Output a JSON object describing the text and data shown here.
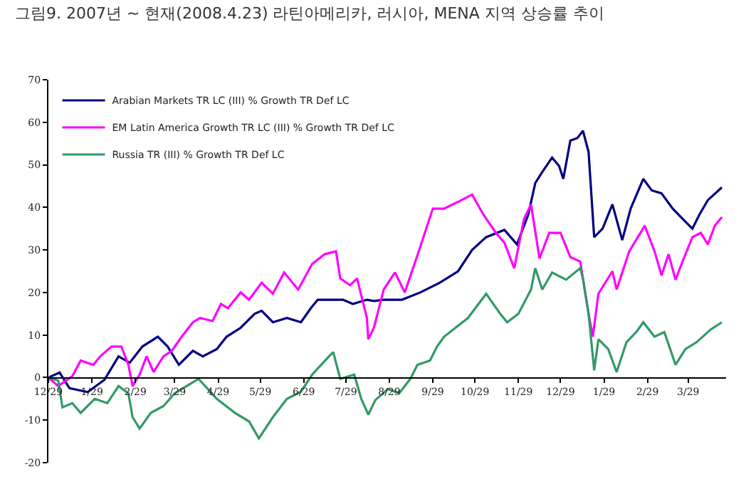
{
  "chart_data": {
    "type": "line",
    "title": "그림9. 2007년 ~ 현재(2008.4.23) 라틴아메리카, 러시아, MENA 지역 상승률 추이",
    "xlim": [
      "2006-12-29",
      "2008-04-25"
    ],
    "xticks": [
      {
        "value": "2006-12-29",
        "label": "12/29"
      },
      {
        "value": "2007-01-29",
        "label": "1/29"
      },
      {
        "value": "2007-03-01",
        "label": "2/29"
      },
      {
        "value": "2007-03-29",
        "label": "3/29"
      },
      {
        "value": "2007-04-29",
        "label": "4/29"
      },
      {
        "value": "2007-05-29",
        "label": "5/29"
      },
      {
        "value": "2007-06-29",
        "label": "6/29"
      },
      {
        "value": "2007-07-29",
        "label": "7/29"
      },
      {
        "value": "2007-08-29",
        "label": "8/29"
      },
      {
        "value": "2007-09-29",
        "label": "9/29"
      },
      {
        "value": "2007-10-29",
        "label": "10/29"
      },
      {
        "value": "2007-11-29",
        "label": "11/29"
      },
      {
        "value": "2007-12-29",
        "label": "12/29"
      },
      {
        "value": "2008-01-29",
        "label": "1/29"
      },
      {
        "value": "2008-02-29",
        "label": "2/29"
      },
      {
        "value": "2008-03-29",
        "label": "3/29"
      }
    ],
    "ylim": [
      -20,
      70
    ],
    "yticks": [
      -20,
      -10,
      0,
      10,
      20,
      30,
      40,
      50,
      60,
      70
    ],
    "legend": "top",
    "marker": "none",
    "line_style": "solid",
    "series": [
      {
        "name": "Arabian Markets TR LC (III) % Growth TR Def LC",
        "color": "#000080",
        "x": [
          "2006-12-29",
          "2007-01-06",
          "2007-01-13",
          "2007-01-26",
          "2007-02-07",
          "2007-02-17",
          "2007-02-25",
          "2007-03-06",
          "2007-03-17",
          "2007-03-24",
          "2007-04-01",
          "2007-04-11",
          "2007-04-18",
          "2007-04-28",
          "2007-05-05",
          "2007-05-15",
          "2007-05-25",
          "2007-05-30",
          "2007-06-07",
          "2007-06-17",
          "2007-06-27",
          "2007-07-04",
          "2007-07-09",
          "2007-07-20",
          "2007-07-27",
          "2007-08-03",
          "2007-08-13",
          "2007-08-18",
          "2007-08-25",
          "2007-09-07",
          "2007-09-20",
          "2007-10-04",
          "2007-10-17",
          "2007-10-27",
          "2007-11-06",
          "2007-11-19",
          "2007-11-28",
          "2007-12-06",
          "2007-12-11",
          "2007-12-16",
          "2007-12-23",
          "2007-12-28",
          "2007-12-31",
          "2008-01-05",
          "2008-01-10",
          "2008-01-14",
          "2008-01-18",
          "2008-01-22",
          "2008-01-28",
          "2008-02-04",
          "2008-02-11",
          "2008-02-17",
          "2008-02-26",
          "2008-03-03",
          "2008-03-10",
          "2008-03-18",
          "2008-03-25",
          "2008-04-01",
          "2008-04-06",
          "2008-04-12",
          "2008-04-22"
        ],
        "values": [
          0,
          1.2,
          -2.5,
          -3.4,
          -0.5,
          5,
          3.5,
          7.3,
          9.6,
          7.3,
          3,
          6.3,
          5,
          6.7,
          9.6,
          11.7,
          15,
          15.7,
          13,
          14,
          13,
          16.3,
          18.3,
          18.3,
          18.3,
          17.3,
          18.3,
          18,
          18.3,
          18.3,
          20,
          22.3,
          25,
          30,
          33,
          34.7,
          31.3,
          38.3,
          45.7,
          48.3,
          51.7,
          49.7,
          46.7,
          55.7,
          56.3,
          58,
          53,
          33,
          35,
          40.7,
          32.3,
          39.7,
          46.7,
          44,
          43.3,
          39.7,
          37.3,
          35,
          38.3,
          41.7,
          44.7
        ]
      },
      {
        "name": "EM Latin America Growth TR LC (III) % Growth TR Def LC",
        "color": "#ff00ff",
        "x": [
          "2006-12-29",
          "2007-01-05",
          "2007-01-15",
          "2007-01-21",
          "2007-01-30",
          "2007-02-04",
          "2007-02-12",
          "2007-02-19",
          "2007-02-24",
          "2007-02-27",
          "2007-03-04",
          "2007-03-09",
          "2007-03-14",
          "2007-03-21",
          "2007-03-27",
          "2007-04-03",
          "2007-04-11",
          "2007-04-16",
          "2007-04-25",
          "2007-05-01",
          "2007-05-06",
          "2007-05-15",
          "2007-05-21",
          "2007-05-30",
          "2007-06-07",
          "2007-06-15",
          "2007-06-25",
          "2007-07-05",
          "2007-07-14",
          "2007-07-22",
          "2007-07-25",
          "2007-08-01",
          "2007-08-06",
          "2007-08-13",
          "2007-08-14",
          "2007-08-18",
          "2007-08-25",
          "2007-09-02",
          "2007-09-09",
          "2007-09-19",
          "2007-09-29",
          "2007-10-07",
          "2007-10-17",
          "2007-10-27",
          "2007-11-04",
          "2007-11-13",
          "2007-11-19",
          "2007-11-26",
          "2007-12-03",
          "2007-12-08",
          "2007-12-14",
          "2007-12-21",
          "2007-12-29",
          "2008-01-05",
          "2008-01-12",
          "2008-01-18",
          "2008-01-21",
          "2008-01-25",
          "2008-02-04",
          "2008-02-07",
          "2008-02-16",
          "2008-02-24",
          "2008-02-27",
          "2008-03-05",
          "2008-03-10",
          "2008-03-15",
          "2008-03-20",
          "2008-03-25",
          "2008-04-01",
          "2008-04-07",
          "2008-04-12",
          "2008-04-17",
          "2008-04-22"
        ],
        "values": [
          0,
          -2,
          0.3,
          4,
          3,
          5,
          7.3,
          7.3,
          3,
          -2,
          0.7,
          5,
          1.3,
          5,
          6.3,
          9.6,
          13,
          14,
          13.3,
          17.3,
          16.3,
          20,
          18.3,
          22.3,
          19.7,
          24.7,
          20.7,
          26.7,
          29,
          29.7,
          23.3,
          21.7,
          23.3,
          14,
          9,
          11.7,
          20.7,
          24.7,
          20,
          29.7,
          39.7,
          39.7,
          41.3,
          43,
          38.3,
          34,
          31.7,
          25.7,
          37.3,
          40.7,
          28,
          34,
          34,
          28.3,
          27.3,
          15,
          9.6,
          19.7,
          25,
          20.7,
          29.7,
          34,
          35.7,
          29.7,
          24,
          29,
          23,
          27.3,
          33,
          34,
          31.3,
          35.7,
          37.7
        ]
      },
      {
        "name": "Russia TR (III) % Growth TR Def LC",
        "color": "#339966",
        "x": [
          "2006-12-29",
          "2007-01-05",
          "2007-01-08",
          "2007-01-15",
          "2007-01-21",
          "2007-01-31",
          "2007-02-09",
          "2007-02-17",
          "2007-02-24",
          "2007-02-27",
          "2007-03-04",
          "2007-03-12",
          "2007-03-21",
          "2007-03-29",
          "2007-04-08",
          "2007-04-15",
          "2007-04-28",
          "2007-05-11",
          "2007-05-21",
          "2007-05-28",
          "2007-06-07",
          "2007-06-17",
          "2007-06-27",
          "2007-07-05",
          "2007-07-17",
          "2007-07-20",
          "2007-07-25",
          "2007-08-04",
          "2007-08-09",
          "2007-08-14",
          "2007-08-19",
          "2007-08-28",
          "2007-09-05",
          "2007-09-13",
          "2007-09-18",
          "2007-09-27",
          "2007-10-02",
          "2007-10-07",
          "2007-10-24",
          "2007-11-06",
          "2007-11-16",
          "2007-11-21",
          "2007-11-29",
          "2007-12-08",
          "2007-12-11",
          "2007-12-16",
          "2007-12-23",
          "2008-01-02",
          "2008-01-12",
          "2008-01-14",
          "2008-01-18",
          "2008-01-22",
          "2008-01-25",
          "2008-02-01",
          "2008-02-07",
          "2008-02-14",
          "2008-02-21",
          "2008-02-26",
          "2008-03-05",
          "2008-03-12",
          "2008-03-20",
          "2008-03-27",
          "2008-04-04",
          "2008-04-14",
          "2008-04-22"
        ],
        "values": [
          0,
          -0.7,
          -7,
          -6,
          -8.3,
          -5,
          -6,
          -2,
          -3.7,
          -9.3,
          -12,
          -8.3,
          -6.7,
          -3.7,
          -1.7,
          -0.3,
          -5,
          -8.3,
          -10.3,
          -14.3,
          -9.3,
          -5,
          -3.3,
          0.7,
          5,
          6,
          -0.3,
          0.7,
          -5,
          -8.7,
          -5.3,
          -2.7,
          -3.7,
          -0.3,
          3,
          4,
          7.3,
          9.6,
          14,
          19.7,
          15,
          13,
          15,
          20.7,
          25.7,
          20.7,
          24.7,
          23,
          25.7,
          23.3,
          15,
          1.7,
          9,
          6.7,
          1.3,
          8.3,
          10.7,
          13,
          9.6,
          10.7,
          3,
          6.7,
          8.3,
          11.3,
          13
        ]
      }
    ]
  }
}
